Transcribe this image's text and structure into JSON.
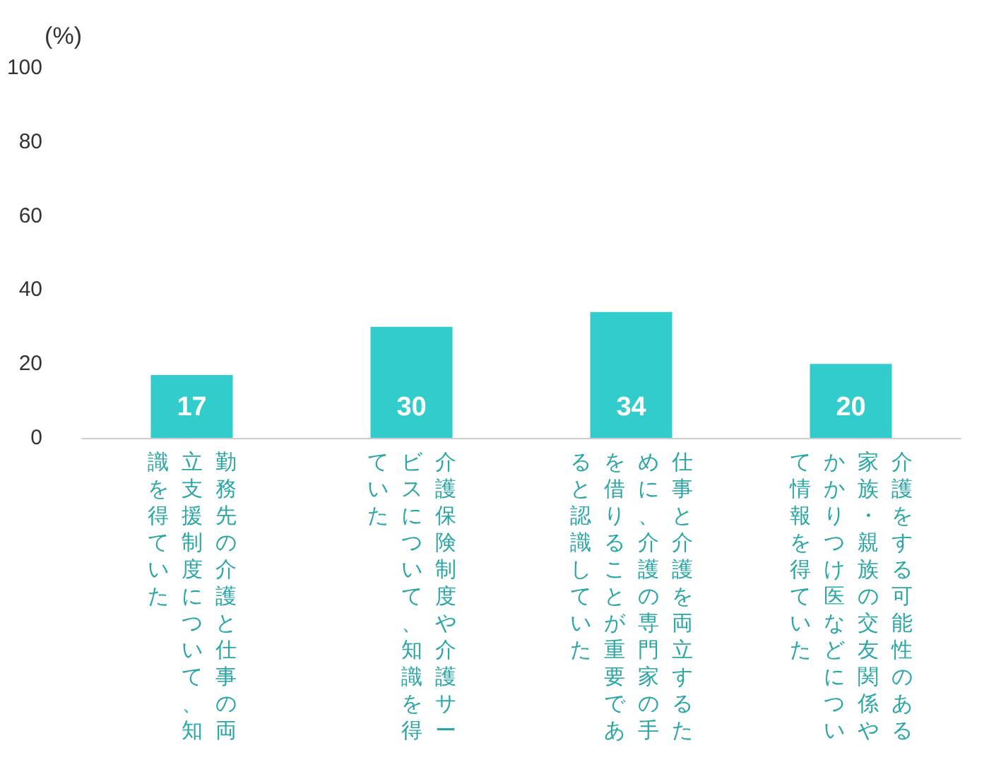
{
  "chart_data": {
    "type": "bar",
    "ylabel": "(%)",
    "categories": [
      "勤務先の介護と仕事の両立支援制度について、知識を得ていた",
      "介護保険制度や介護サービスについて、知識を得ていた",
      "仕事と介護を両立するために、介護の専門家の手を借りることが重要であると認識していた",
      "介護をする可能性のある家族・親族の交友関係やかかりつけ医などについて情報を得ていた"
    ],
    "values": [
      17,
      30,
      34,
      20
    ],
    "color": "#33cccc",
    "ylim": [
      0,
      100
    ],
    "yticks": [
      0,
      20,
      40,
      60,
      80,
      100
    ],
    "grid": false,
    "data_labels": true
  }
}
